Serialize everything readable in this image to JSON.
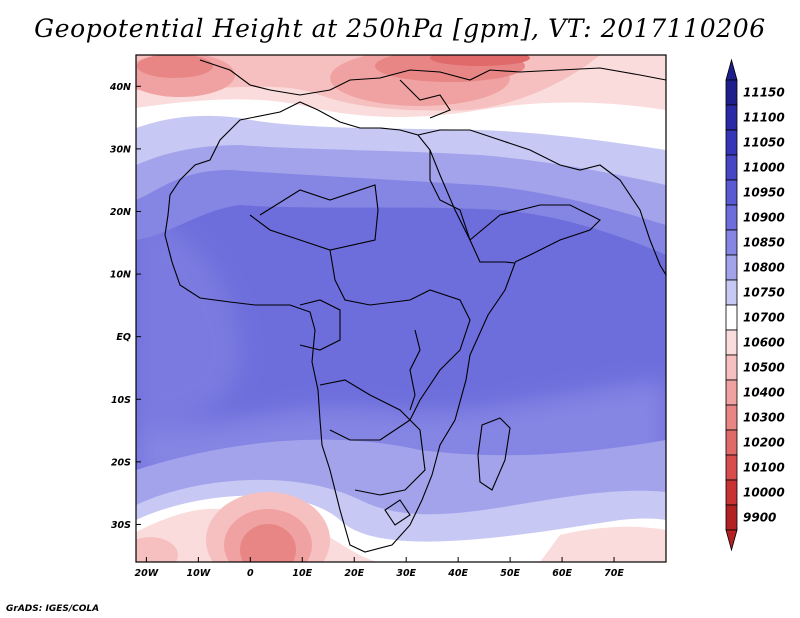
{
  "title": "Geopotential Height at 250hPa [gpm], VT: 2017110206",
  "credit": "GrADS: IGES/COLA",
  "map": {
    "lon_ticks": [
      {
        "value": -20,
        "label": "20W"
      },
      {
        "value": -10,
        "label": "10W"
      },
      {
        "value": 0,
        "label": "0"
      },
      {
        "value": 10,
        "label": "10E"
      },
      {
        "value": 20,
        "label": "20E"
      },
      {
        "value": 30,
        "label": "30E"
      },
      {
        "value": 40,
        "label": "40E"
      },
      {
        "value": 50,
        "label": "50E"
      },
      {
        "value": 60,
        "label": "60E"
      },
      {
        "value": 70,
        "label": "70E"
      }
    ],
    "lat_ticks": [
      {
        "value": 40,
        "label": "40N"
      },
      {
        "value": 30,
        "label": "30N"
      },
      {
        "value": 20,
        "label": "20N"
      },
      {
        "value": 10,
        "label": "10N"
      },
      {
        "value": 0,
        "label": "EQ"
      },
      {
        "value": -10,
        "label": "10S"
      },
      {
        "value": -20,
        "label": "20S"
      },
      {
        "value": -30,
        "label": "30S"
      }
    ],
    "lon_range": [
      -22,
      80
    ],
    "lat_range": [
      -36,
      45
    ]
  },
  "colorbar": {
    "levels": [
      {
        "label": "11150",
        "color": "#1e1e8c"
      },
      {
        "label": "11100",
        "color": "#2a2aa6"
      },
      {
        "label": "11050",
        "color": "#3535b8"
      },
      {
        "label": "11000",
        "color": "#4747c6"
      },
      {
        "label": "10950",
        "color": "#5a5ad2"
      },
      {
        "label": "10900",
        "color": "#6d6ddc"
      },
      {
        "label": "10850",
        "color": "#8585e4"
      },
      {
        "label": "10800",
        "color": "#a3a3ec"
      },
      {
        "label": "10750",
        "color": "#c8c8f4"
      },
      {
        "label": "10700",
        "color": "#ffffff"
      },
      {
        "label": "10600",
        "color": "#fbdcdc"
      },
      {
        "label": "10500",
        "color": "#f6c0c0"
      },
      {
        "label": "10400",
        "color": "#f0a2a2"
      },
      {
        "label": "10300",
        "color": "#e88686"
      },
      {
        "label": "10200",
        "color": "#e06a6a"
      },
      {
        "label": "10100",
        "color": "#d84c4c"
      },
      {
        "label": "10000",
        "color": "#c83232"
      },
      {
        "label": "9900",
        "color": "#b22222"
      }
    ]
  }
}
